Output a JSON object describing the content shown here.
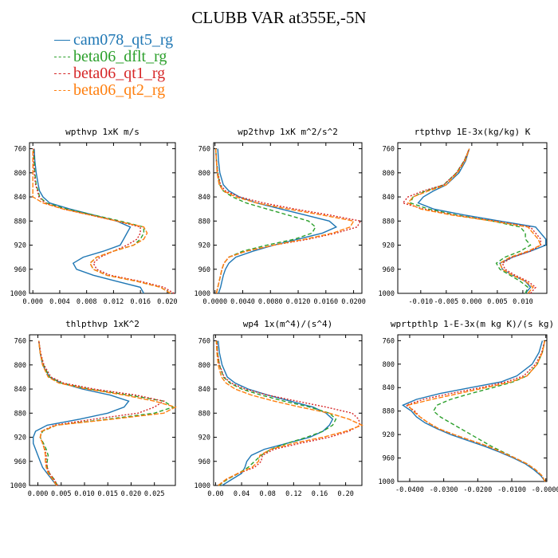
{
  "title": "CLUBB VAR at355E,-5N",
  "legend": [
    {
      "label": "cam078_qt5_rg",
      "color": "#1f77b4",
      "dash": ""
    },
    {
      "label": "beta06_dflt_rg",
      "color": "#2ca02c",
      "dash": "5,3"
    },
    {
      "label": "beta06_qt1_rg",
      "color": "#d62728",
      "dash": "2,2"
    },
    {
      "label": "beta06_qt2_rg",
      "color": "#ff7f0e",
      "dash": "6,2"
    }
  ],
  "chart_data": [
    {
      "type": "line",
      "title": "wpthvp  1xK m/s",
      "y": [
        1000,
        990,
        980,
        970,
        960,
        950,
        940,
        930,
        920,
        910,
        900,
        890,
        880,
        870,
        860,
        850,
        840,
        830,
        820,
        800,
        780,
        760
      ],
      "ylim": [
        1000,
        750
      ],
      "yticks": [
        760,
        800,
        840,
        880,
        920,
        960,
        1000
      ],
      "xlim": [
        -0.0005,
        0.0212
      ],
      "xticks": [
        0.0,
        0.004,
        0.008,
        0.012,
        0.016,
        0.02
      ],
      "xticklabels": [
        "0.000",
        "0.004",
        "0.008",
        "0.012",
        "0.016",
        "0.020"
      ],
      "series": [
        {
          "name": "cam078_qt5_rg",
          "values": [
            0.0165,
            0.016,
            0.0125,
            0.009,
            0.0065,
            0.006,
            0.0075,
            0.0105,
            0.013,
            0.0135,
            0.014,
            0.0145,
            0.0125,
            0.009,
            0.0055,
            0.0025,
            0.0015,
            0.001,
            0.0008,
            0.0005,
            0.0003,
            0.0002
          ]
        },
        {
          "name": "beta06_dflt_rg",
          "values": [
            0.0205,
            0.019,
            0.0155,
            0.011,
            0.009,
            0.0085,
            0.0095,
            0.012,
            0.015,
            0.016,
            0.0165,
            0.0165,
            0.013,
            0.009,
            0.005,
            0.002,
            0.001,
            0.0008,
            0.0005,
            0.0003,
            0.0002,
            0.0001
          ]
        },
        {
          "name": "beta06_qt1_rg",
          "values": [
            0.021,
            0.0195,
            0.016,
            0.0115,
            0.0095,
            0.009,
            0.01,
            0.012,
            0.014,
            0.0155,
            0.016,
            0.016,
            0.0125,
            0.0085,
            0.0045,
            0.0018,
            0.0009,
            0.0007,
            0.0004,
            0.0002,
            0.0001,
            0.0001
          ]
        },
        {
          "name": "beta06_qt2_rg",
          "values": [
            0.0205,
            0.019,
            0.0155,
            0.011,
            0.009,
            0.0085,
            0.0095,
            0.012,
            0.015,
            0.0165,
            0.017,
            0.0165,
            0.0125,
            0.0085,
            0.0045,
            0.0015,
            0.0,
            0.0,
            0.0,
            0.0,
            0.0,
            0.0
          ]
        }
      ]
    },
    {
      "type": "line",
      "title": "wp2thvp  1xK m^2/s^2",
      "y": [
        1000,
        990,
        980,
        970,
        960,
        950,
        940,
        930,
        920,
        910,
        900,
        890,
        880,
        870,
        860,
        850,
        840,
        830,
        820,
        800,
        780,
        760
      ],
      "ylim": [
        1000,
        750
      ],
      "yticks": [
        760,
        800,
        840,
        880,
        920,
        960,
        1000
      ],
      "xlim": [
        -0.0002,
        0.0212
      ],
      "xticks": [
        0.0,
        0.004,
        0.008,
        0.012,
        0.016,
        0.02
      ],
      "xticklabels": [
        "0.0000",
        "0.0040",
        "0.0080",
        "0.0120",
        "0.0160",
        "0.0200"
      ],
      "series": [
        {
          "name": "cam078_qt5_rg",
          "values": [
            0.0005,
            0.0008,
            0.001,
            0.0012,
            0.0015,
            0.002,
            0.003,
            0.0055,
            0.0085,
            0.012,
            0.0155,
            0.0175,
            0.0165,
            0.013,
            0.0095,
            0.006,
            0.0035,
            0.002,
            0.0012,
            0.0007,
            0.0005,
            0.0004
          ]
        },
        {
          "name": "beta06_dflt_rg",
          "values": [
            0.0002,
            0.0004,
            0.0006,
            0.0008,
            0.001,
            0.0013,
            0.002,
            0.004,
            0.0075,
            0.0115,
            0.014,
            0.0145,
            0.0135,
            0.0105,
            0.0075,
            0.0045,
            0.0025,
            0.0012,
            0.0007,
            0.0004,
            0.0002,
            0.0001
          ]
        },
        {
          "name": "beta06_qt1_rg",
          "values": [
            0.0002,
            0.0004,
            0.0006,
            0.0008,
            0.001,
            0.0013,
            0.002,
            0.0045,
            0.0085,
            0.0135,
            0.0175,
            0.0205,
            0.021,
            0.0165,
            0.0115,
            0.007,
            0.0035,
            0.0015,
            0.0008,
            0.0004,
            0.0002,
            0.0001
          ]
        },
        {
          "name": "beta06_qt2_rg",
          "values": [
            0.0002,
            0.0004,
            0.0006,
            0.0008,
            0.001,
            0.0013,
            0.002,
            0.0045,
            0.0085,
            0.013,
            0.017,
            0.0195,
            0.02,
            0.0155,
            0.0105,
            0.006,
            0.003,
            0.0012,
            0.0006,
            0.0003,
            0.0002,
            0.0001
          ]
        }
      ]
    },
    {
      "type": "line",
      "title": "rtpthvp  1E-3x(kg/kg) K",
      "y": [
        1000,
        990,
        980,
        970,
        960,
        950,
        940,
        930,
        920,
        910,
        900,
        890,
        880,
        870,
        860,
        850,
        840,
        830,
        820,
        800,
        780,
        760
      ],
      "ylim": [
        1000,
        750
      ],
      "yticks": [
        760,
        800,
        840,
        880,
        920,
        960,
        1000
      ],
      "xlim": [
        -0.0145,
        0.0147
      ],
      "xticks": [
        -0.01,
        -0.005,
        0.0,
        0.005,
        0.01
      ],
      "xticklabels": [
        "-0.010",
        "-0.005",
        "0.000",
        "0.005",
        "0.010"
      ],
      "series": [
        {
          "name": "cam078_qt5_rg",
          "values": [
            0.0105,
            0.0115,
            0.0105,
            0.008,
            0.006,
            0.0055,
            0.008,
            0.0115,
            0.0145,
            0.0145,
            0.0135,
            0.0125,
            0.0055,
            -0.0015,
            -0.0075,
            -0.0105,
            -0.0095,
            -0.0075,
            -0.005,
            -0.0025,
            -0.0012,
            -0.0005
          ]
        },
        {
          "name": "beta06_dflt_rg",
          "values": [
            0.0105,
            0.011,
            0.0095,
            0.0075,
            0.0055,
            0.0048,
            0.0065,
            0.0095,
            0.0115,
            0.0105,
            0.0105,
            0.0095,
            0.004,
            -0.003,
            -0.0085,
            -0.012,
            -0.0115,
            -0.009,
            -0.0055,
            -0.003,
            -0.0015,
            -0.0005
          ]
        },
        {
          "name": "beta06_qt1_rg",
          "values": [
            0.0115,
            0.0125,
            0.011,
            0.0085,
            0.0065,
            0.006,
            0.008,
            0.0115,
            0.0135,
            0.0135,
            0.0125,
            0.0115,
            0.0045,
            -0.0035,
            -0.0095,
            -0.0135,
            -0.0125,
            -0.0095,
            -0.0055,
            -0.003,
            -0.0015,
            -0.0005
          ]
        },
        {
          "name": "beta06_qt2_rg",
          "values": [
            0.011,
            0.012,
            0.0105,
            0.008,
            0.006,
            0.0055,
            0.0075,
            0.011,
            0.0135,
            0.013,
            0.012,
            0.011,
            0.004,
            -0.004,
            -0.01,
            -0.0125,
            -0.0115,
            -0.0085,
            -0.005,
            -0.0028,
            -0.0013,
            -0.0005
          ]
        }
      ]
    },
    {
      "type": "line",
      "title": "thlpthvp  1xK^2",
      "y": [
        1000,
        990,
        980,
        970,
        960,
        950,
        940,
        930,
        920,
        910,
        900,
        890,
        880,
        870,
        860,
        850,
        840,
        830,
        820,
        800,
        780,
        760
      ],
      "ylim": [
        1000,
        750
      ],
      "yticks": [
        760,
        800,
        840,
        880,
        920,
        960,
        1000
      ],
      "xlim": [
        -0.0018,
        0.0295
      ],
      "xticks": [
        0.0,
        0.005,
        0.01,
        0.015,
        0.02,
        0.025
      ],
      "xticklabels": [
        "0.000",
        "0.005",
        "0.010",
        "0.015",
        "0.020",
        "0.025"
      ],
      "series": [
        {
          "name": "cam078_qt5_rg",
          "values": [
            0.004,
            0.003,
            0.002,
            0.001,
            0.0005,
            0.0,
            -0.0005,
            -0.001,
            -0.001,
            -0.0005,
            0.002,
            0.009,
            0.015,
            0.0185,
            0.0195,
            0.0155,
            0.0095,
            0.005,
            0.0025,
            0.001,
            0.0005,
            0.0002
          ]
        },
        {
          "name": "beta06_dflt_rg",
          "values": [
            0.0042,
            0.0035,
            0.0025,
            0.002,
            0.002,
            0.0022,
            0.0018,
            0.0012,
            0.0005,
            0.001,
            0.004,
            0.015,
            0.025,
            0.029,
            0.027,
            0.0195,
            0.011,
            0.005,
            0.0025,
            0.0012,
            0.0005,
            0.0002
          ]
        },
        {
          "name": "beta06_qt1_rg",
          "values": [
            0.0042,
            0.0035,
            0.0025,
            0.002,
            0.0018,
            0.0018,
            0.0015,
            0.001,
            0.0005,
            0.0008,
            0.0035,
            0.012,
            0.0215,
            0.025,
            0.027,
            0.021,
            0.012,
            0.0055,
            0.0028,
            0.0013,
            0.0006,
            0.0002
          ]
        },
        {
          "name": "beta06_qt2_rg",
          "values": [
            0.004,
            0.0032,
            0.0022,
            0.0018,
            0.0016,
            0.0016,
            0.0014,
            0.001,
            0.0005,
            0.0008,
            0.004,
            0.016,
            0.027,
            0.0295,
            0.025,
            0.0185,
            0.0105,
            0.0045,
            0.0022,
            0.001,
            0.0005,
            0.0002
          ]
        }
      ]
    },
    {
      "type": "line",
      "title": "wp4  1x(m^4)/(s^4)",
      "y": [
        1000,
        990,
        980,
        970,
        960,
        950,
        940,
        930,
        920,
        910,
        900,
        890,
        880,
        870,
        860,
        850,
        840,
        830,
        820,
        800,
        780,
        760
      ],
      "ylim": [
        1000,
        750
      ],
      "yticks": [
        760,
        800,
        840,
        880,
        920,
        960,
        1000
      ],
      "xlim": [
        -0.003,
        0.225
      ],
      "xticks": [
        0.0,
        0.04,
        0.08,
        0.12,
        0.16,
        0.2
      ],
      "xticklabels": [
        "0.00",
        "0.04",
        "0.08",
        "0.12",
        "0.16",
        "0.20"
      ],
      "series": [
        {
          "name": "cam078_qt5_rg",
          "values": [
            0.01,
            0.025,
            0.04,
            0.045,
            0.048,
            0.055,
            0.075,
            0.11,
            0.145,
            0.165,
            0.175,
            0.18,
            0.17,
            0.15,
            0.115,
            0.08,
            0.05,
            0.03,
            0.018,
            0.01,
            0.006,
            0.004
          ]
        },
        {
          "name": "beta06_dflt_rg",
          "values": [
            0.005,
            0.018,
            0.035,
            0.05,
            0.06,
            0.07,
            0.085,
            0.11,
            0.14,
            0.165,
            0.18,
            0.185,
            0.175,
            0.145,
            0.105,
            0.07,
            0.04,
            0.022,
            0.012,
            0.006,
            0.003,
            0.002
          ]
        },
        {
          "name": "beta06_qt1_rg",
          "values": [
            0.004,
            0.016,
            0.035,
            0.06,
            0.07,
            0.072,
            0.09,
            0.13,
            0.175,
            0.205,
            0.222,
            0.22,
            0.21,
            0.17,
            0.125,
            0.08,
            0.045,
            0.024,
            0.013,
            0.006,
            0.003,
            0.002
          ]
        },
        {
          "name": "beta06_qt2_rg",
          "values": [
            0.004,
            0.016,
            0.034,
            0.056,
            0.066,
            0.068,
            0.085,
            0.12,
            0.165,
            0.2,
            0.225,
            0.205,
            0.175,
            0.13,
            0.09,
            0.055,
            0.03,
            0.016,
            0.009,
            0.004,
            0.002,
            0.001
          ]
        }
      ]
    },
    {
      "type": "line",
      "title": "wprtpthlp  1-E-3x(m kg K)/(s kg)",
      "y": [
        1000,
        990,
        980,
        970,
        960,
        950,
        940,
        930,
        920,
        910,
        900,
        890,
        880,
        870,
        860,
        850,
        840,
        830,
        820,
        800,
        780,
        760
      ],
      "ylim": [
        1000,
        750
      ],
      "yticks": [
        760,
        800,
        840,
        880,
        920,
        960,
        1000
      ],
      "xlim": [
        -0.0435,
        0.0003
      ],
      "xticks": [
        -0.04,
        -0.03,
        -0.02,
        -0.01,
        0.0
      ],
      "xticklabels": [
        "-0.0400",
        "-0.0300",
        "-0.0200",
        "-0.0100",
        "-0.0000"
      ],
      "series": [
        {
          "name": "cam078_qt5_rg",
          "values": [
            -0.0002,
            -0.0015,
            -0.0035,
            -0.006,
            -0.0095,
            -0.0135,
            -0.018,
            -0.023,
            -0.028,
            -0.032,
            -0.0355,
            -0.038,
            -0.0395,
            -0.042,
            -0.038,
            -0.031,
            -0.022,
            -0.013,
            -0.0085,
            -0.004,
            -0.002,
            -0.001
          ]
        },
        {
          "name": "beta06_dflt_rg",
          "values": [
            -0.0002,
            -0.0012,
            -0.003,
            -0.0055,
            -0.009,
            -0.0125,
            -0.016,
            -0.019,
            -0.022,
            -0.025,
            -0.028,
            -0.031,
            -0.033,
            -0.032,
            -0.028,
            -0.022,
            -0.0155,
            -0.0095,
            -0.0055,
            -0.0025,
            -0.001,
            -0.0003
          ]
        },
        {
          "name": "beta06_qt1_rg",
          "values": [
            -0.0002,
            -0.0012,
            -0.003,
            -0.0055,
            -0.009,
            -0.013,
            -0.017,
            -0.022,
            -0.027,
            -0.0315,
            -0.0345,
            -0.037,
            -0.0385,
            -0.041,
            -0.036,
            -0.028,
            -0.019,
            -0.0115,
            -0.0065,
            -0.003,
            -0.0012,
            -0.0003
          ]
        },
        {
          "name": "beta06_qt2_rg",
          "values": [
            -0.0002,
            -0.0012,
            -0.003,
            -0.0055,
            -0.009,
            -0.013,
            -0.017,
            -0.022,
            -0.027,
            -0.0315,
            -0.0345,
            -0.037,
            -0.039,
            -0.0405,
            -0.0335,
            -0.0255,
            -0.0175,
            -0.01,
            -0.0055,
            -0.0025,
            -0.001,
            -0.0003
          ]
        }
      ]
    }
  ]
}
